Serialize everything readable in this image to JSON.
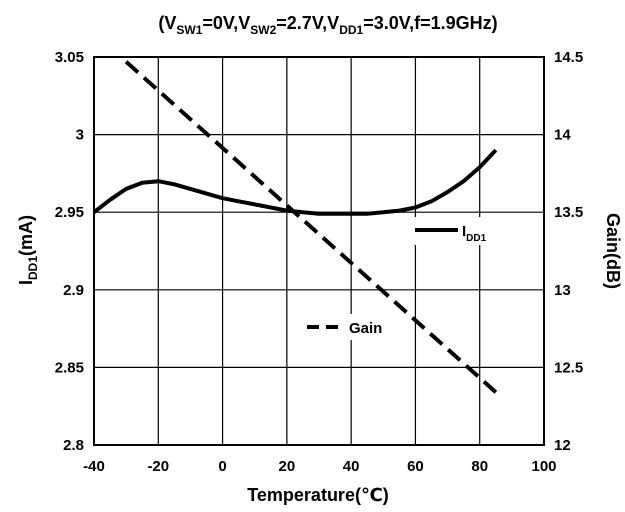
{
  "chart_data": {
    "type": "line",
    "title_parts": [
      {
        "t": "(V",
        "sub": false
      },
      {
        "t": "SW1",
        "sub": true
      },
      {
        "t": "=0V,V",
        "sub": false
      },
      {
        "t": "SW2",
        "sub": true
      },
      {
        "t": "=2.7V,V",
        "sub": false
      },
      {
        "t": "DD1",
        "sub": true
      },
      {
        "t": "=3.0V,f=1.9GHz)",
        "sub": false
      }
    ],
    "xlabel": "Temperature(℃)",
    "ylabel_left_parts": [
      {
        "t": "I",
        "sub": false
      },
      {
        "t": "DD1",
        "sub": true
      },
      {
        "t": "(mA)",
        "sub": false
      }
    ],
    "ylabel_right": "Gain(dB)",
    "xlim": [
      -40,
      100
    ],
    "ylim_left": [
      2.8,
      3.05
    ],
    "ylim_right": [
      12,
      14.5
    ],
    "x_ticks": [
      "-40",
      "-20",
      "0",
      "20",
      "40",
      "60",
      "80",
      "100"
    ],
    "y_left_ticks": [
      "2.8",
      "2.85",
      "2.9",
      "2.95",
      "3",
      "3.05"
    ],
    "y_right_ticks": [
      "12",
      "12.5",
      "13",
      "13.5",
      "14",
      "14.5"
    ],
    "grid": true,
    "series": [
      {
        "name_parts": [
          {
            "t": "I",
            "sub": false
          },
          {
            "t": "DD1",
            "sub": true
          }
        ],
        "axis": "left",
        "style": "solid",
        "color": "#000000",
        "x": [
          -40,
          -35,
          -30,
          -25,
          -20,
          -15,
          -10,
          -5,
          0,
          5,
          10,
          15,
          20,
          25,
          30,
          35,
          40,
          45,
          50,
          55,
          60,
          65,
          70,
          75,
          80,
          85
        ],
        "y": [
          2.95,
          2.958,
          2.965,
          2.969,
          2.97,
          2.968,
          2.965,
          2.962,
          2.959,
          2.957,
          2.955,
          2.953,
          2.951,
          2.95,
          2.949,
          2.949,
          2.949,
          2.949,
          2.95,
          2.951,
          2.953,
          2.957,
          2.963,
          2.97,
          2.979,
          2.99
        ]
      },
      {
        "name": "Gain",
        "axis": "right",
        "style": "dashed",
        "color": "#000000",
        "x": [
          -30,
          85
        ],
        "y": [
          14.47,
          12.34
        ]
      }
    ]
  }
}
